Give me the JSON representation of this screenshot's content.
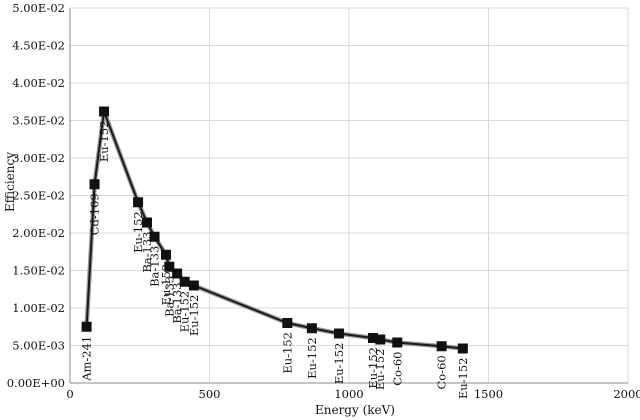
{
  "chart_data": {
    "type": "line",
    "xlabel": "Energy (keV)",
    "ylabel": "Efficiency",
    "xlim": [
      0,
      2000
    ],
    "ylim": [
      0,
      0.05
    ],
    "x_ticks": [
      "0",
      "500",
      "1000",
      "1500",
      "2000"
    ],
    "y_ticks": [
      "0.00E+00",
      "5.00E-03",
      "1.00E-02",
      "1.50E-02",
      "2.00E-02",
      "2.50E-02",
      "3.00E-02",
      "3.50E-02",
      "4.00E-02",
      "4.50E-02",
      "5.00E-02"
    ],
    "grid": true,
    "series": [
      {
        "points": [
          {
            "x": 59.5,
            "y": 0.0075,
            "label": "Am-241"
          },
          {
            "x": 88,
            "y": 0.0265,
            "label": "Cd-109"
          },
          {
            "x": 122,
            "y": 0.0362,
            "label": "Eu-152"
          },
          {
            "x": 244,
            "y": 0.0241,
            "label": "Eu-152"
          },
          {
            "x": 276,
            "y": 0.0214,
            "label": "Ba-133"
          },
          {
            "x": 303,
            "y": 0.0195,
            "label": "Ba-133"
          },
          {
            "x": 344,
            "y": 0.0171,
            "label": "Eu-152"
          },
          {
            "x": 356,
            "y": 0.0155,
            "label": "Ba-133"
          },
          {
            "x": 384,
            "y": 0.0146,
            "label": "Ba-133"
          },
          {
            "x": 411,
            "y": 0.0135,
            "label": "Eu-152"
          },
          {
            "x": 444,
            "y": 0.013,
            "label": "Eu-152"
          },
          {
            "x": 779,
            "y": 0.008,
            "label": "Eu-152"
          },
          {
            "x": 867,
            "y": 0.0073,
            "label": "Eu-152"
          },
          {
            "x": 964,
            "y": 0.0066,
            "label": "Eu-152"
          },
          {
            "x": 1086,
            "y": 0.006,
            "label": "Eu-152"
          },
          {
            "x": 1112,
            "y": 0.0058,
            "label": "Eu-152"
          },
          {
            "x": 1173,
            "y": 0.0054,
            "label": "Co-60"
          },
          {
            "x": 1332,
            "y": 0.0049,
            "label": "Co-60"
          },
          {
            "x": 1408,
            "y": 0.0046,
            "label": "Eu-152"
          }
        ]
      }
    ]
  }
}
